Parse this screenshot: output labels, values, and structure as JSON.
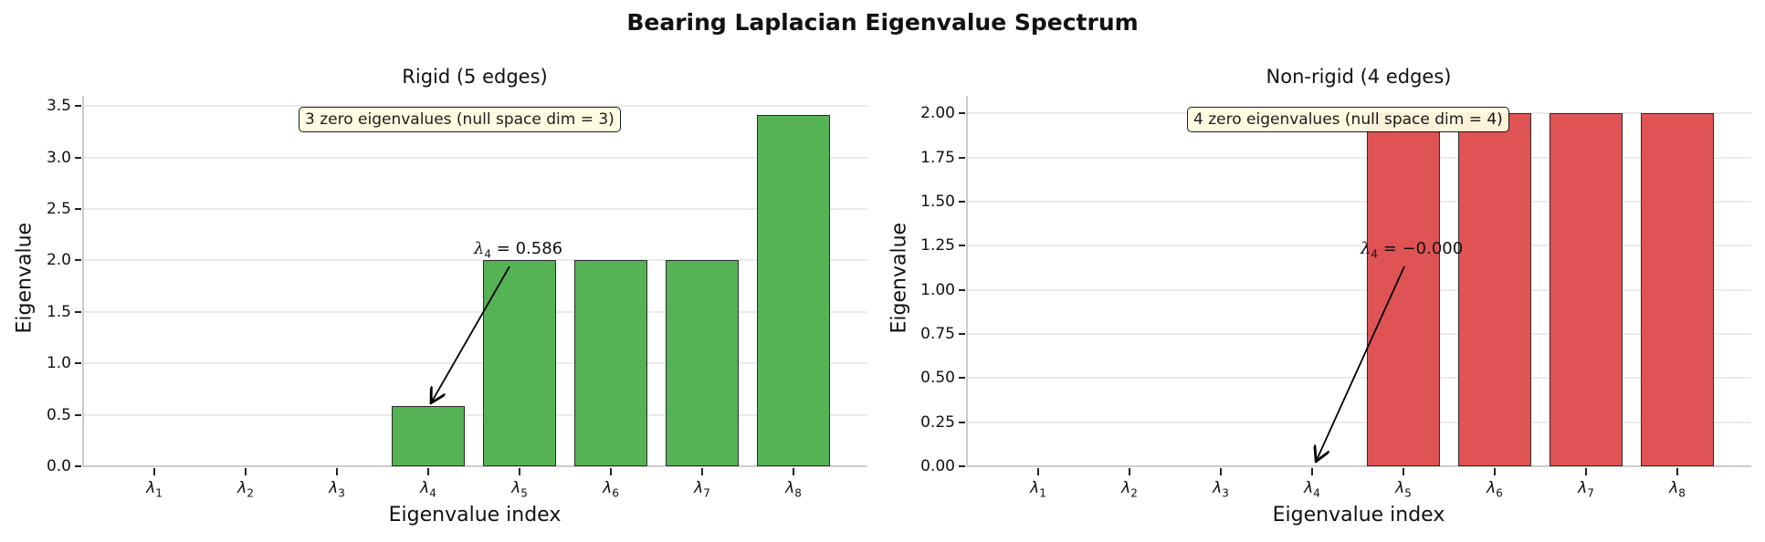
{
  "figure": {
    "suptitle": "Bearing Laplacian Eigenvalue Spectrum"
  },
  "panels": [
    {
      "title": "Rigid (5 edges)",
      "xlabel": "Eigenvalue index",
      "ylabel": "Eigenvalue",
      "yticks": [
        "0.0",
        "0.5",
        "1.0",
        "1.5",
        "2.0",
        "2.5",
        "3.0",
        "3.5"
      ],
      "xticks": [
        "λ1",
        "λ2",
        "λ3",
        "λ4",
        "λ5",
        "λ6",
        "λ7",
        "λ8"
      ],
      "info_box": "3 zero eigenvalues (null space dim = 3)",
      "annotation": "λ4 = 0.586",
      "annotation_symbol": "λ",
      "annotation_sub": "4",
      "annotation_value": " = 0.586",
      "bar_color": "#55b255"
    },
    {
      "title": "Non-rigid (4 edges)",
      "xlabel": "Eigenvalue index",
      "ylabel": "Eigenvalue",
      "yticks": [
        "0.00",
        "0.25",
        "0.50",
        "0.75",
        "1.00",
        "1.25",
        "1.50",
        "1.75",
        "2.00"
      ],
      "xticks": [
        "λ1",
        "λ2",
        "λ3",
        "λ4",
        "λ5",
        "λ6",
        "λ7",
        "λ8"
      ],
      "info_box": "4 zero eigenvalues (null space dim = 4)",
      "annotation": "λ4 = −0.000",
      "annotation_symbol": "λ",
      "annotation_sub": "4",
      "annotation_value": " = −0.000",
      "bar_color": "#e05355"
    }
  ],
  "chart_data": [
    {
      "type": "bar",
      "title": "Rigid (5 edges)",
      "xlabel": "Eigenvalue index",
      "ylabel": "Eigenvalue",
      "categories": [
        "λ1",
        "λ2",
        "λ3",
        "λ4",
        "λ5",
        "λ6",
        "λ7",
        "λ8"
      ],
      "values": [
        0.0,
        0.0,
        0.0,
        0.586,
        2.0,
        2.0,
        2.0,
        3.414
      ],
      "ylim": [
        0,
        3.6
      ],
      "yticks": [
        0.0,
        0.5,
        1.0,
        1.5,
        2.0,
        2.5,
        3.0,
        3.5
      ],
      "grid": "y",
      "color": "#55b255",
      "annotations": [
        {
          "text": "λ4 = 0.586",
          "target": "λ4"
        },
        {
          "text": "3 zero eigenvalues (null space dim = 3)",
          "type": "box"
        }
      ]
    },
    {
      "type": "bar",
      "title": "Non-rigid (4 edges)",
      "xlabel": "Eigenvalue index",
      "ylabel": "Eigenvalue",
      "categories": [
        "λ1",
        "λ2",
        "λ3",
        "λ4",
        "λ5",
        "λ6",
        "λ7",
        "λ8"
      ],
      "values": [
        0.0,
        0.0,
        0.0,
        0.0,
        2.0,
        2.0,
        2.0,
        2.0
      ],
      "ylim": [
        0,
        2.1
      ],
      "yticks": [
        0.0,
        0.25,
        0.5,
        0.75,
        1.0,
        1.25,
        1.5,
        1.75,
        2.0
      ],
      "grid": "y",
      "color": "#e05355",
      "annotations": [
        {
          "text": "λ4 = −0.000",
          "target": "λ4"
        },
        {
          "text": "4 zero eigenvalues (null space dim = 4)",
          "type": "box"
        }
      ]
    }
  ]
}
